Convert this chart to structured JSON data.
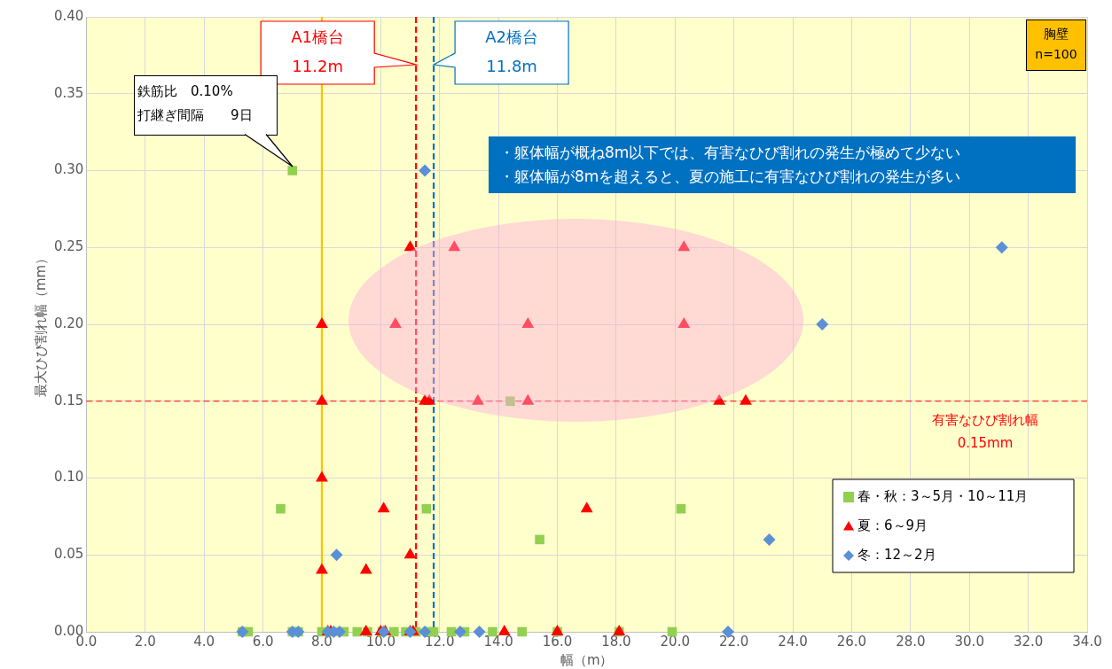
{
  "chart_data": {
    "type": "scatter",
    "xlabel": "幅（m）",
    "ylabel": "最大ひび割れ幅（mm）",
    "xlim": [
      0,
      34
    ],
    "xticks": [
      {
        "value": 0,
        "label": "0.0"
      },
      {
        "value": 2,
        "label": "2.0"
      },
      {
        "value": 4,
        "label": "4.0"
      },
      {
        "value": 6,
        "label": "6.0"
      },
      {
        "value": 8,
        "label": "8.0"
      },
      {
        "value": 10,
        "label": "10.0"
      },
      {
        "value": 12,
        "label": "12.0"
      },
      {
        "value": 14,
        "label": "14.0"
      },
      {
        "value": 16,
        "label": "16.0"
      },
      {
        "value": 18,
        "label": "18.0"
      },
      {
        "value": 20,
        "label": "20.0"
      },
      {
        "value": 22,
        "label": "22.0"
      },
      {
        "value": 24,
        "label": "24.0"
      },
      {
        "value": 26,
        "label": "26.0"
      },
      {
        "value": 28,
        "label": "28.0"
      },
      {
        "value": 30,
        "label": "30.0"
      },
      {
        "value": 32,
        "label": "32.0"
      },
      {
        "value": 34,
        "label": "34.0"
      }
    ],
    "ylim": [
      0,
      0.4
    ],
    "yticks": [
      {
        "value": 0,
        "label": "0.00"
      },
      {
        "value": 0.05,
        "label": "0.05"
      },
      {
        "value": 0.1,
        "label": "0.10"
      },
      {
        "value": 0.15,
        "label": "0.15"
      },
      {
        "value": 0.2,
        "label": "0.20"
      },
      {
        "value": 0.25,
        "label": "0.25"
      },
      {
        "value": 0.3,
        "label": "0.30"
      },
      {
        "value": 0.35,
        "label": "0.35"
      },
      {
        "value": 0.4,
        "label": "0.40"
      }
    ],
    "grid": true,
    "legend": "bottom right",
    "series": [
      {
        "name": "春・秋：3～5月・10～11月",
        "color": "#92d050",
        "marker": "square",
        "x": [
          5.3,
          5.5,
          7.0,
          7.2,
          8.0,
          8.35,
          8.75,
          9.2,
          9.55,
          10.05,
          10.45,
          10.85,
          11.2,
          11.6,
          11.8,
          12.4,
          12.85,
          13.8,
          14.8,
          16.0,
          18.1,
          19.9,
          7.0,
          14.4,
          6.6,
          11.55,
          20.2,
          15.4
        ],
        "values": [
          0,
          0,
          0,
          0,
          0,
          0,
          0,
          0,
          0,
          0,
          0,
          0,
          0,
          0,
          0,
          0,
          0,
          0,
          0,
          0,
          0,
          0,
          0.3,
          0.15,
          0.08,
          0.08,
          0.08,
          0.06
        ]
      },
      {
        "name": "夏：6～9月",
        "color": "#ff0000",
        "marker": "triangle",
        "x": [
          8.2,
          8.3,
          9.5,
          10.0,
          10.15,
          11.0,
          11.1,
          14.2,
          16.0,
          18.1,
          11.0,
          12.5,
          20.3,
          8.0,
          10.5,
          15.0,
          20.3,
          8.0,
          11.5,
          11.65,
          13.3,
          15.0,
          21.5,
          22.4,
          8.0,
          10.1,
          17.0,
          11.0,
          8.0,
          9.5
        ],
        "values": [
          0,
          0,
          0,
          0,
          0,
          0,
          0,
          0,
          0,
          0,
          0.25,
          0.25,
          0.25,
          0.2,
          0.2,
          0.2,
          0.2,
          0.15,
          0.15,
          0.15,
          0.15,
          0.15,
          0.15,
          0.15,
          0.1,
          0.08,
          0.08,
          0.05,
          0.04,
          0.04
        ]
      },
      {
        "name": "冬：12～2月",
        "color": "#5b8fd6",
        "marker": "diamond",
        "x": [
          5.3,
          7.0,
          7.2,
          8.2,
          8.4,
          8.6,
          10.1,
          11.0,
          11.5,
          12.7,
          13.35,
          21.8,
          11.5,
          31.1,
          25.0,
          23.2,
          8.5
        ],
        "values": [
          0,
          0,
          0,
          0,
          0,
          0,
          0,
          0,
          0,
          0,
          0,
          0,
          0.3,
          0.25,
          0.2,
          0.06,
          0.05
        ]
      }
    ],
    "ref_lines": [
      {
        "axis": "x",
        "value": 8,
        "color": "#ffc000",
        "line_style": "solid"
      },
      {
        "axis": "x",
        "value": 11.2,
        "label": "A1橋台\n11.2m",
        "color": "#ff0000",
        "line_style": "dashed"
      },
      {
        "axis": "x",
        "value": 11.8,
        "label": "A2橋台\n11.8m",
        "color": "#0070c0",
        "line_style": "dashed"
      },
      {
        "axis": "y",
        "value": 0.15,
        "label": "有害なひび割れ幅\n0.15mm",
        "color": "#ff0000",
        "line_style": "dashed"
      }
    ],
    "annotations": [
      "鉄筋比　0.10%\n打継ぎ間隔　　9日",
      "・躯体幅が概ね8m以下では、有害なひび割れの発生が極めて少ない",
      "・躯体幅が8mを超えると、夏の施工に有害なひび割れの発生が多い",
      "胸壁",
      "n=100"
    ]
  }
}
